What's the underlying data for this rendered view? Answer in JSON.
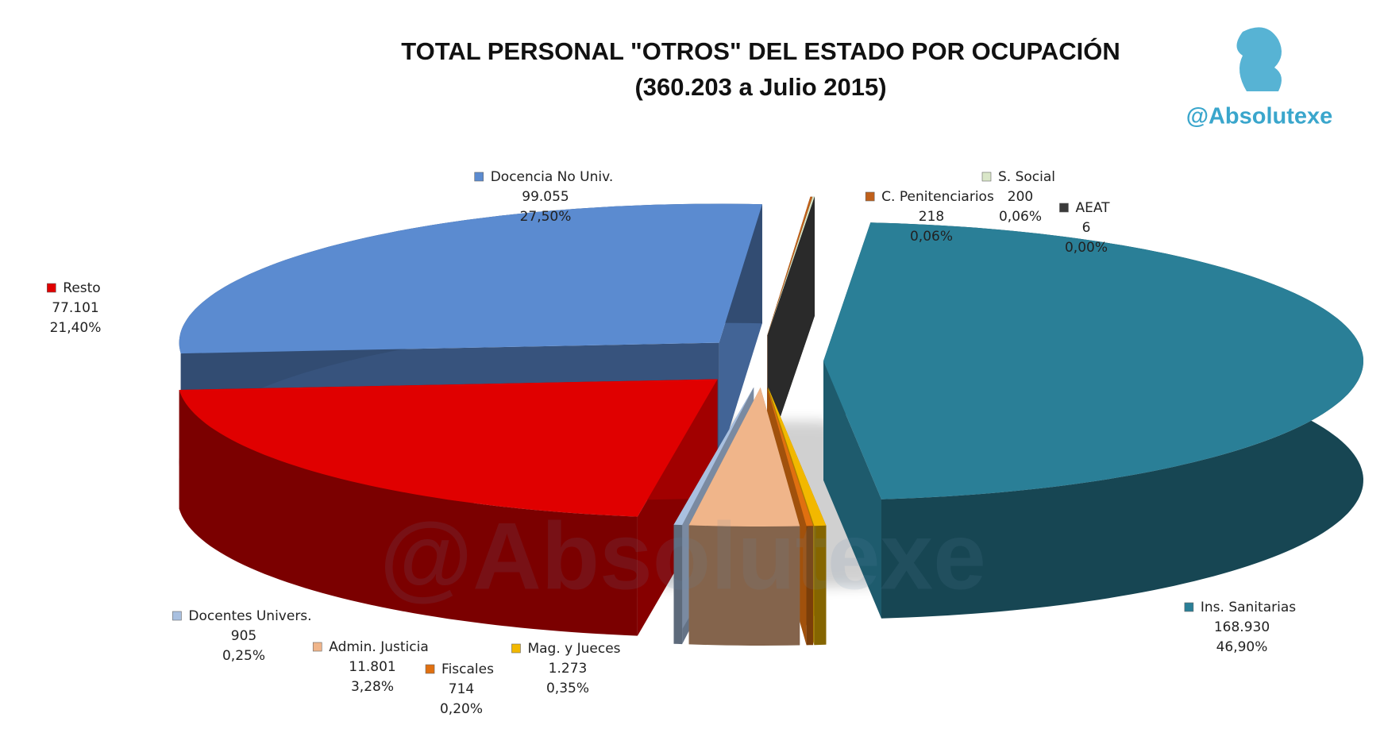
{
  "chart_data": {
    "type": "pie3d",
    "title": "TOTAL PERSONAL \"OTROS\" DEL ESTADO POR OCUPACIÓN",
    "subtitle": "(360.203 a Julio 2015)",
    "logo_text": "@Absolutexe",
    "categories": [
      "Ins. Sanitarias",
      "Mag. y Jueces",
      "Fiscales",
      "Admin. Justicia",
      "Docentes Univers.",
      "Resto",
      "Docencia No Univ.",
      "C. Penitenciarios",
      "S. Social",
      "AEAT"
    ],
    "values": [
      168930,
      1273,
      714,
      11801,
      905,
      77101,
      99055,
      218,
      200,
      6
    ],
    "value_labels": [
      "168.930",
      "1.273",
      "714",
      "11.801",
      "905",
      "77.101",
      "99.055",
      "218",
      "200",
      "6"
    ],
    "percentages": [
      46.9,
      0.35,
      0.2,
      3.28,
      0.25,
      21.4,
      27.5,
      0.06,
      0.06,
      0.0
    ],
    "percentage_labels": [
      "46,90%",
      "0,35%",
      "0,20%",
      "3,28%",
      "0,25%",
      "21,40%",
      "27,50%",
      "0,06%",
      "0,06%",
      "0,00%"
    ],
    "colors": [
      "#2a7f97",
      "#f2b800",
      "#e07010",
      "#f0b58a",
      "#a9c0e0",
      "#e00000",
      "#5b8bd0",
      "#c0601a",
      "#d9e6c8",
      "#3a3a3a"
    ]
  }
}
